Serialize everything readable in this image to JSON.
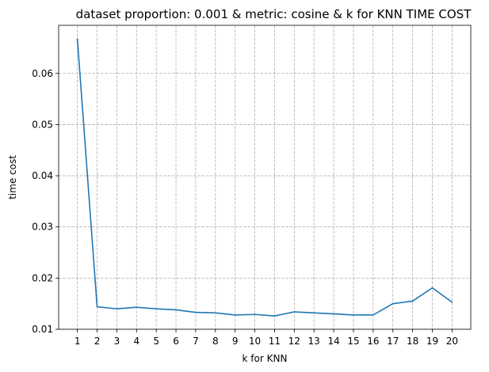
{
  "chart_data": {
    "type": "line",
    "title": "dataset proportion: 0.001 & metric: cosine & k for KNN TIME COST",
    "xlabel": "k for KNN",
    "ylabel": "time cost",
    "x": [
      1,
      2,
      3,
      4,
      5,
      6,
      7,
      8,
      9,
      10,
      11,
      12,
      13,
      14,
      15,
      16,
      17,
      18,
      19,
      20
    ],
    "xticks": [
      "1",
      "2",
      "3",
      "4",
      "5",
      "6",
      "7",
      "8",
      "9",
      "10",
      "11",
      "12",
      "13",
      "14",
      "15",
      "16",
      "17",
      "18",
      "19",
      "20"
    ],
    "yticks": [
      0.01,
      0.02,
      0.03,
      0.04,
      0.05,
      0.06
    ],
    "ytick_labels": [
      "0.01",
      "0.02",
      "0.03",
      "0.04",
      "0.05",
      "0.06"
    ],
    "ylim": [
      0.01,
      0.0694
    ],
    "xlim": [
      0.05,
      20.95
    ],
    "grid": true,
    "series": [
      {
        "color": "#1f77b4",
        "values": [
          0.0667,
          0.0144,
          0.014,
          0.0143,
          0.014,
          0.0138,
          0.0133,
          0.0132,
          0.0128,
          0.0129,
          0.0126,
          0.0134,
          0.0132,
          0.013,
          0.0128,
          0.0128,
          0.015,
          0.0155,
          0.0181,
          0.0153
        ]
      }
    ]
  }
}
